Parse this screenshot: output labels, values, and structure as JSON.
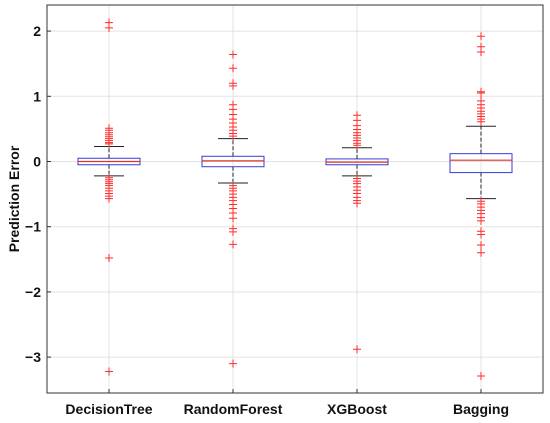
{
  "chart_data": {
    "type": "box",
    "title": "",
    "xlabel": "",
    "ylabel": "Prediction Error",
    "ylim": [
      -3.55,
      2.4
    ],
    "yticks": [
      -3,
      -2,
      -1,
      0,
      1,
      2
    ],
    "ytick_labels": [
      "−3",
      "−2",
      "−1",
      "0",
      "1",
      "2"
    ],
    "grid": true,
    "colors": {
      "box": "#3a3ad6",
      "median": "#e0302a",
      "outlier": "#ff2a2a",
      "whisker": "#222222",
      "grid": "#e3e3e3",
      "axis": "#333333"
    },
    "categories": [
      "DecisionTree",
      "RandomForest",
      "XGBoost",
      "Bagging"
    ],
    "boxes": [
      {
        "category": "DecisionTree",
        "whisker_low": -0.22,
        "q1": -0.05,
        "median": 0.0,
        "q3": 0.05,
        "whisker_high": 0.23,
        "outliers": [
          2.13,
          2.05,
          0.51,
          0.48,
          0.44,
          0.41,
          0.38,
          0.35,
          0.32,
          0.29,
          0.27,
          -0.25,
          -0.28,
          -0.31,
          -0.34,
          -0.37,
          -0.41,
          -0.45,
          -0.49,
          -0.53,
          -0.57,
          -1.48,
          -3.22
        ]
      },
      {
        "category": "RandomForest",
        "whisker_low": -0.33,
        "q1": -0.08,
        "median": 0.01,
        "q3": 0.08,
        "whisker_high": 0.35,
        "outliers": [
          1.64,
          1.43,
          1.2,
          1.16,
          0.87,
          0.8,
          0.72,
          0.65,
          0.59,
          0.53,
          0.48,
          0.43,
          0.39,
          -0.37,
          -0.41,
          -0.45,
          -0.5,
          -0.55,
          -0.6,
          -0.66,
          -0.72,
          -0.79,
          -0.87,
          -1.03,
          -1.08,
          -1.27,
          -3.1
        ]
      },
      {
        "category": "XGBoost",
        "whisker_low": -0.22,
        "q1": -0.05,
        "median": -0.01,
        "q3": 0.04,
        "whisker_high": 0.21,
        "outliers": [
          0.71,
          0.63,
          0.55,
          0.49,
          0.44,
          0.4,
          0.36,
          0.32,
          0.28,
          0.25,
          -0.26,
          -0.3,
          -0.34,
          -0.39,
          -0.44,
          -0.49,
          -0.55,
          -0.6,
          -0.64,
          -2.88
        ]
      },
      {
        "category": "Bagging",
        "whisker_low": -0.57,
        "q1": -0.17,
        "median": 0.02,
        "q3": 0.12,
        "whisker_high": 0.54,
        "outliers": [
          1.92,
          1.76,
          1.68,
          1.07,
          1.05,
          0.93,
          0.87,
          0.82,
          0.77,
          0.73,
          0.69,
          0.65,
          0.61,
          -0.61,
          -0.65,
          -0.7,
          -0.75,
          -0.8,
          -0.86,
          -0.91,
          -1.07,
          -1.12,
          -1.28,
          -1.4,
          -3.29
        ]
      }
    ]
  }
}
